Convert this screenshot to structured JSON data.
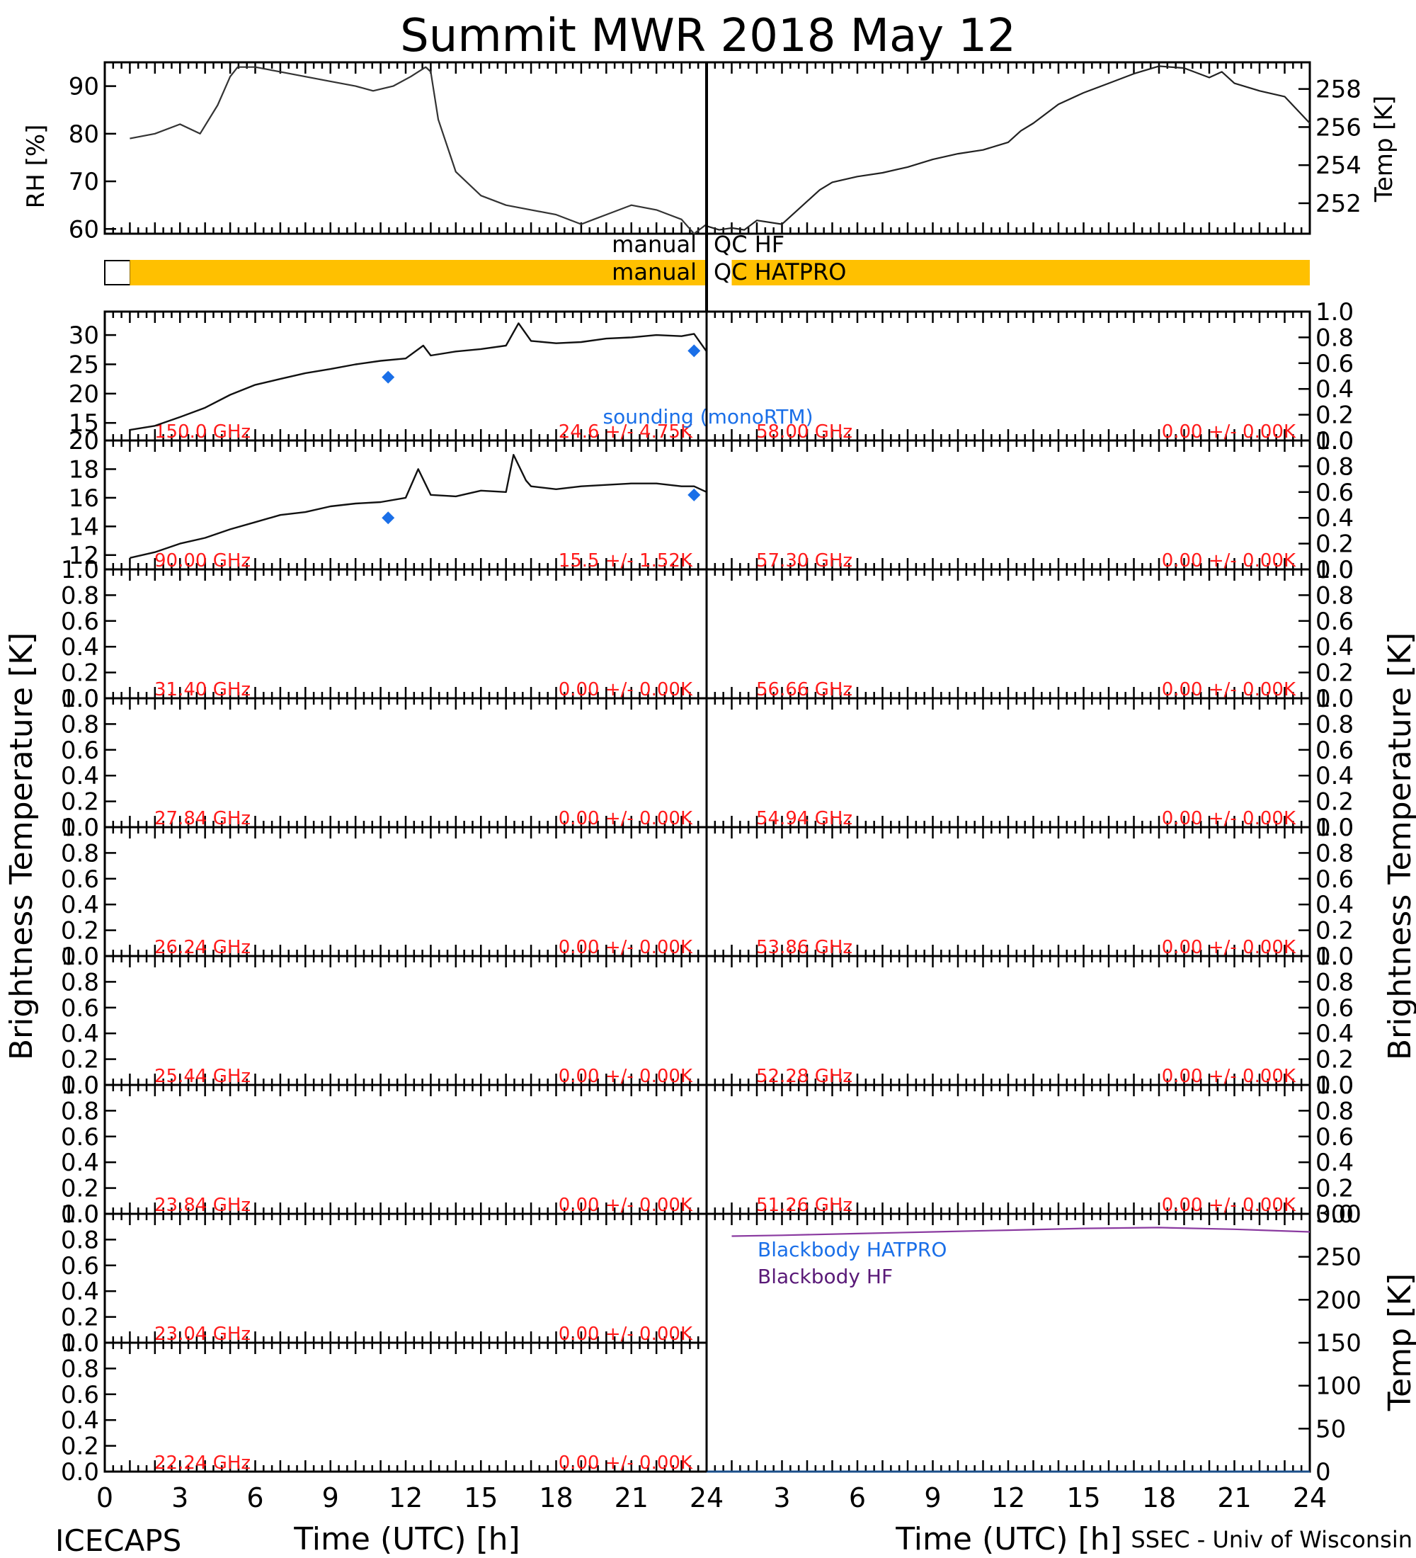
{
  "title": "Summit MWR 2018 May 12",
  "footer_left": "ICECAPS",
  "footer_right": "SSEC - Univ of Wisconsin",
  "xlabel": "Time (UTC) [h]",
  "xticks": [
    "0",
    "3",
    "6",
    "9",
    "12",
    "15",
    "18",
    "21",
    "24"
  ],
  "ylabel_tb": "Brightness Temperature [K]",
  "qc": {
    "hf_label": "manual QC HF",
    "hatpro_label": "manual QC HATPRO",
    "hatpro_bar_color": "#ffc000",
    "hatpro_bar_hours": [
      1,
      24
    ]
  },
  "colors": {
    "annotation": "#ff1a1a",
    "sounding": "#1a6fe8",
    "bb_hf": "#8a3aa0",
    "bb_hatpro": "#1a6fe8"
  },
  "chart_data": [
    {
      "type": "line",
      "id": "rh",
      "ylabel": "RH [%]",
      "ylim": [
        59,
        95
      ],
      "yticks": [
        "60",
        "70",
        "80",
        "90"
      ],
      "xlim": [
        0,
        24
      ],
      "series": [
        {
          "x": [
            1,
            2,
            3,
            3.8,
            4.5,
            5,
            5.3,
            6,
            7,
            8,
            9,
            10,
            10.7,
            11.5,
            12.2,
            12.8,
            13,
            13.3,
            14,
            15,
            16,
            17,
            18,
            19,
            19.5,
            20,
            21,
            22,
            22.5,
            23,
            23.5,
            24
          ],
          "values": [
            79,
            80,
            82,
            80,
            86,
            92,
            94,
            94,
            93,
            92,
            91,
            90,
            89,
            90,
            92,
            94,
            93,
            83,
            72,
            67,
            65,
            64,
            63,
            61,
            62,
            63,
            65,
            64,
            63,
            62,
            59,
            61
          ]
        }
      ]
    },
    {
      "type": "line",
      "id": "air_temp",
      "ylabel": "Temp [K]",
      "ylim": [
        250.4,
        259.4
      ],
      "yticks": [
        "252",
        "254",
        "256",
        "258"
      ],
      "xlim": [
        0,
        24
      ],
      "series": [
        {
          "x": [
            0,
            0.5,
            1,
            1.5,
            2,
            3,
            4,
            4.5,
            5,
            6,
            7,
            8,
            9,
            10,
            11,
            12,
            12.5,
            13,
            14,
            15,
            16,
            17,
            18,
            19,
            20,
            20.5,
            21,
            22,
            23,
            24
          ],
          "values": [
            250.8,
            250.6,
            250.7,
            250.6,
            251.1,
            250.9,
            252.1,
            252.7,
            253.1,
            253.4,
            253.6,
            253.9,
            254.3,
            254.6,
            254.8,
            255.2,
            255.8,
            256.2,
            257.2,
            257.8,
            258.3,
            258.8,
            259.2,
            259.1,
            258.6,
            258.9,
            258.3,
            257.9,
            257.6,
            256.2
          ]
        }
      ]
    },
    {
      "type": "line",
      "id": "tb150",
      "label_freq": "150.0 GHz",
      "label_stat": "24.6 +/- 4.75K",
      "ylim": [
        12,
        34
      ],
      "yticks": [
        "15",
        "20",
        "25",
        "30"
      ],
      "xlim": [
        0,
        24
      ],
      "series": [
        {
          "name": "",
          "x": [
            1,
            2,
            3,
            4,
            5,
            6,
            7,
            8,
            9,
            10,
            11,
            12,
            12.7,
            13,
            14,
            15,
            16,
            16.5,
            17,
            18,
            19,
            20,
            21,
            22,
            23,
            23.5,
            24
          ],
          "values": [
            13.8,
            14.5,
            16.0,
            17.6,
            19.8,
            21.5,
            22.5,
            23.5,
            24.2,
            25.0,
            25.6,
            26.0,
            28.2,
            26.5,
            27.2,
            27.6,
            28.2,
            32.0,
            29.0,
            28.6,
            28.8,
            29.4,
            29.6,
            30.0,
            29.8,
            30.2,
            27.2
          ]
        },
        {
          "name": "sounding (monoRTM)",
          "x": [
            11.3,
            23.5
          ],
          "values": [
            22.8,
            27.3
          ]
        }
      ]
    },
    {
      "type": "line",
      "id": "tb58",
      "label_freq": "58.00 GHz",
      "label_stat": "0.00 +/- 0.00K",
      "ylim": [
        0,
        1
      ],
      "yticks": [
        "0.0",
        "0.2",
        "0.4",
        "0.6",
        "0.8",
        "1.0"
      ],
      "xlim": [
        0,
        24
      ],
      "series": []
    },
    {
      "type": "line",
      "id": "tb90",
      "label_freq": "90.00 GHz",
      "label_stat": "15.5 +/- 1.52K",
      "ylim": [
        11,
        20
      ],
      "yticks": [
        "12",
        "14",
        "16",
        "18",
        "20"
      ],
      "xlim": [
        0,
        24
      ],
      "series": [
        {
          "name": "",
          "x": [
            1,
            2,
            3,
            4,
            5,
            6,
            7,
            8,
            9,
            10,
            11,
            12,
            12.5,
            13,
            14,
            15,
            16,
            16.3,
            16.8,
            17,
            18,
            19,
            20,
            21,
            22,
            23,
            23.5,
            24
          ],
          "values": [
            11.8,
            12.2,
            12.8,
            13.2,
            13.8,
            14.3,
            14.8,
            15.0,
            15.4,
            15.6,
            15.7,
            16.0,
            18.0,
            16.2,
            16.1,
            16.5,
            16.4,
            19.0,
            17.2,
            16.8,
            16.6,
            16.8,
            16.9,
            17.0,
            17.0,
            16.8,
            16.8,
            16.4
          ]
        },
        {
          "name": "",
          "x": [
            11.3,
            23.5
          ],
          "values": [
            14.6,
            16.2
          ]
        }
      ]
    },
    {
      "type": "line",
      "id": "tb5730",
      "label_freq": "57.30 GHz",
      "label_stat": "0.00 +/- 0.00K",
      "ylim": [
        0,
        1
      ],
      "yticks": [
        "0.0",
        "0.2",
        "0.4",
        "0.6",
        "0.8",
        "1.0"
      ],
      "xlim": [
        0,
        24
      ],
      "series": []
    },
    {
      "type": "line",
      "id": "tb3140",
      "label_freq": "31.40 GHz",
      "label_stat": "0.00 +/- 0.00K",
      "ylim": [
        0,
        1
      ],
      "yticks": [
        "0.0",
        "0.2",
        "0.4",
        "0.6",
        "0.8",
        "1.0"
      ],
      "xlim": [
        0,
        24
      ],
      "series": []
    },
    {
      "type": "line",
      "id": "tb5666",
      "label_freq": "56.66 GHz",
      "label_stat": "0.00 +/- 0.00K",
      "ylim": [
        0,
        1
      ],
      "yticks": [
        "0.0",
        "0.2",
        "0.4",
        "0.6",
        "0.8",
        "1.0"
      ],
      "xlim": [
        0,
        24
      ],
      "series": []
    },
    {
      "type": "line",
      "id": "tb2784",
      "label_freq": "27.84 GHz",
      "label_stat": "0.00 +/- 0.00K",
      "ylim": [
        0,
        1
      ],
      "yticks": [
        "0.0",
        "0.2",
        "0.4",
        "0.6",
        "0.8",
        "1.0"
      ],
      "xlim": [
        0,
        24
      ],
      "series": []
    },
    {
      "type": "line",
      "id": "tb5494",
      "label_freq": "54.94 GHz",
      "label_stat": "0.00 +/- 0.00K",
      "ylim": [
        0,
        1
      ],
      "yticks": [
        "0.0",
        "0.2",
        "0.4",
        "0.6",
        "0.8",
        "1.0"
      ],
      "xlim": [
        0,
        24
      ],
      "series": []
    },
    {
      "type": "line",
      "id": "tb2624",
      "label_freq": "26.24 GHz",
      "label_stat": "0.00 +/- 0.00K",
      "ylim": [
        0,
        1
      ],
      "yticks": [
        "0.0",
        "0.2",
        "0.4",
        "0.6",
        "0.8",
        "1.0"
      ],
      "xlim": [
        0,
        24
      ],
      "series": []
    },
    {
      "type": "line",
      "id": "tb5386",
      "label_freq": "53.86 GHz",
      "label_stat": "0.00 +/- 0.00K",
      "ylim": [
        0,
        1
      ],
      "yticks": [
        "0.0",
        "0.2",
        "0.4",
        "0.6",
        "0.8",
        "1.0"
      ],
      "xlim": [
        0,
        24
      ],
      "series": []
    },
    {
      "type": "line",
      "id": "tb2544",
      "label_freq": "25.44 GHz",
      "label_stat": "0.00 +/- 0.00K",
      "ylim": [
        0,
        1
      ],
      "yticks": [
        "0.0",
        "0.2",
        "0.4",
        "0.6",
        "0.8",
        "1.0"
      ],
      "xlim": [
        0,
        24
      ],
      "series": []
    },
    {
      "type": "line",
      "id": "tb5228",
      "label_freq": "52.28 GHz",
      "label_stat": "0.00 +/- 0.00K",
      "ylim": [
        0,
        1
      ],
      "yticks": [
        "0.0",
        "0.2",
        "0.4",
        "0.6",
        "0.8",
        "1.0"
      ],
      "xlim": [
        0,
        24
      ],
      "series": []
    },
    {
      "type": "line",
      "id": "tb2384",
      "label_freq": "23.84 GHz",
      "label_stat": "0.00 +/- 0.00K",
      "ylim": [
        0,
        1
      ],
      "yticks": [
        "0.0",
        "0.2",
        "0.4",
        "0.6",
        "0.8",
        "1.0"
      ],
      "xlim": [
        0,
        24
      ],
      "series": []
    },
    {
      "type": "line",
      "id": "tb5126",
      "label_freq": "51.26 GHz",
      "label_stat": "0.00 +/- 0.00K",
      "ylim": [
        0,
        1
      ],
      "yticks": [
        "0.0",
        "0.2",
        "0.4",
        "0.6",
        "0.8",
        "1.0"
      ],
      "xlim": [
        0,
        24
      ],
      "series": []
    },
    {
      "type": "line",
      "id": "tb2304",
      "label_freq": "23.04 GHz",
      "label_stat": "0.00 +/- 0.00K",
      "ylim": [
        0,
        1
      ],
      "yticks": [
        "0.0",
        "0.2",
        "0.4",
        "0.6",
        "0.8",
        "1.0"
      ],
      "xlim": [
        0,
        24
      ],
      "series": []
    },
    {
      "type": "line",
      "id": "blackbody",
      "ylabel": "Temp [K]",
      "ylim": [
        0,
        300
      ],
      "yticks": [
        "0",
        "50",
        "100",
        "150",
        "200",
        "250",
        "300"
      ],
      "xlim": [
        0,
        24
      ],
      "series": [
        {
          "name": "Blackbody HATPRO",
          "x": [
            0,
            24
          ],
          "values": [
            0,
            0
          ]
        },
        {
          "name": "Blackbody HF",
          "x": [
            1,
            3,
            6,
            9,
            12,
            15,
            18,
            21,
            24
          ],
          "values": [
            274,
            275,
            277,
            279,
            281,
            283,
            284,
            282,
            279
          ]
        }
      ]
    },
    {
      "type": "line",
      "id": "tb2224",
      "label_freq": "22.24 GHz",
      "label_stat": "0.00 +/- 0.00K",
      "ylim": [
        0,
        1
      ],
      "yticks": [
        "0.0",
        "0.2",
        "0.4",
        "0.6",
        "0.8",
        "1.0"
      ],
      "xlim": [
        0,
        24
      ],
      "series": []
    }
  ]
}
